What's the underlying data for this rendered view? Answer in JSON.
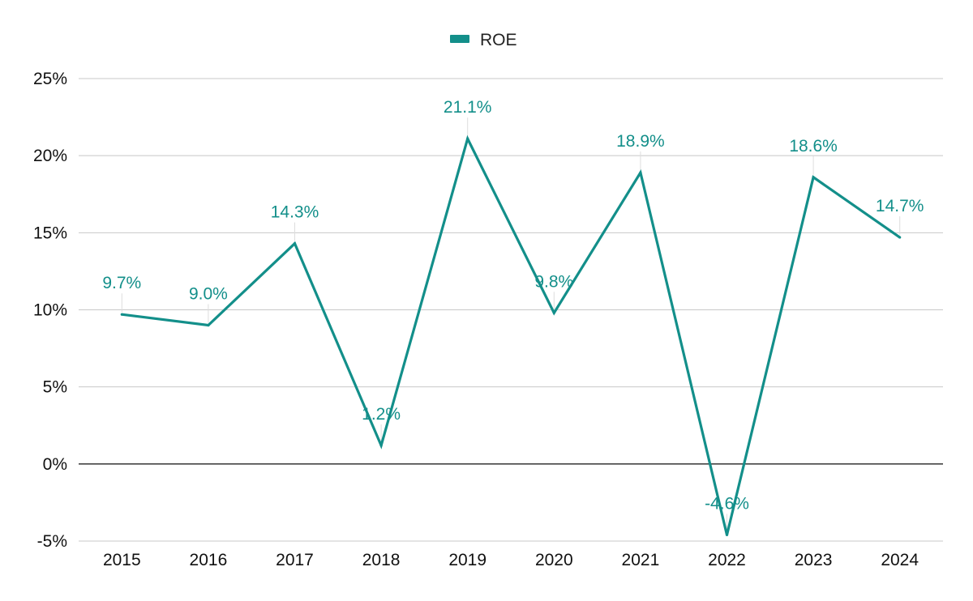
{
  "chart_data": {
    "type": "line",
    "categories": [
      "2015",
      "2016",
      "2017",
      "2018",
      "2019",
      "2020",
      "2021",
      "2022",
      "2023",
      "2024"
    ],
    "series": [
      {
        "name": "ROE",
        "values": [
          9.7,
          9.0,
          14.3,
          1.2,
          21.1,
          9.8,
          18.9,
          -4.6,
          18.6,
          14.7
        ],
        "labels": [
          "9.7%",
          "9.0%",
          "14.3%",
          "1.2%",
          "21.1%",
          "9.8%",
          "18.9%",
          "-4.6%",
          "18.6%",
          "14.7%"
        ]
      }
    ],
    "ylim": [
      -5,
      25
    ],
    "yticks": [
      25,
      20,
      15,
      10,
      5,
      0,
      -5
    ],
    "ytick_labels": [
      "25%",
      "20%",
      "15%",
      "10%",
      "5%",
      "0%",
      "-5%"
    ],
    "grid": true,
    "legend_position": "top-center",
    "colors": {
      "series": "#138f8a",
      "grid": "#c8c8c8",
      "zero_line": "#222222",
      "leader": "#dddddd",
      "text": "#111111"
    }
  }
}
